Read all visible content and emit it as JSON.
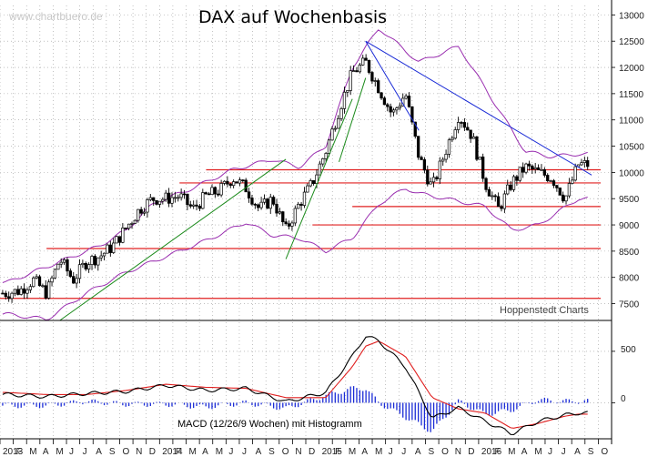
{
  "header": {
    "title": "DAX auf Wochenbasis",
    "watermark": "www.chartbuero.de",
    "source_note": "Hoppenstedt Charts"
  },
  "macd_panel": {
    "label": "MACD (12/26/9 Wochen) mit Histogramm",
    "ticks": [
      "500",
      "0"
    ]
  },
  "colors": {
    "candle": "#000000",
    "bollinger": "#9a2fb0",
    "support_resistance": "#e02020",
    "downtrend": "#1a2bd6",
    "uptrend": "#1a8a1a",
    "macd_line": "#000000",
    "signal_line": "#e02020",
    "histogram": "#1a2bd6",
    "grid": "#9a9a9a"
  },
  "chart_data": [
    {
      "type": "candlestick",
      "title": "DAX auf Wochenbasis",
      "y_ticks": [
        13000,
        12500,
        12000,
        11500,
        11000,
        10500,
        10000,
        9500,
        9000,
        8500,
        8000,
        7500
      ],
      "ylim": [
        7180,
        13180
      ],
      "x_period": [
        "2013-01",
        "2016-09"
      ],
      "x_labels": [
        "2013",
        "F",
        "M",
        "A",
        "M",
        "J",
        "J",
        "A",
        "S",
        "O",
        "N",
        "D",
        "2014",
        "F",
        "M",
        "A",
        "M",
        "J",
        "J",
        "A",
        "S",
        "O",
        "N",
        "D",
        "2015",
        "F",
        "M",
        "A",
        "M",
        "J",
        "J",
        "A",
        "S",
        "O",
        "N",
        "D",
        "2016",
        "F",
        "M",
        "A",
        "M",
        "J",
        "J",
        "A",
        "S",
        "O"
      ],
      "grid": true,
      "close_path_anchors": [
        [
          "2013-01",
          7700
        ],
        [
          "2013-02",
          7750
        ],
        [
          "2013-03",
          7950
        ],
        [
          "2013-04",
          7700
        ],
        [
          "2013-05",
          8350
        ],
        [
          "2013-06",
          7950
        ],
        [
          "2013-07",
          8300
        ],
        [
          "2013-08",
          8400
        ],
        [
          "2013-09",
          8600
        ],
        [
          "2013-10",
          8950
        ],
        [
          "2013-11",
          9300
        ],
        [
          "2013-12",
          9500
        ],
        [
          "2014-01",
          9500
        ],
        [
          "2014-02",
          9550
        ],
        [
          "2014-03",
          9300
        ],
        [
          "2014-04",
          9550
        ],
        [
          "2014-05",
          9650
        ],
        [
          "2014-06",
          9900
        ],
        [
          "2014-07",
          9700
        ],
        [
          "2014-08",
          9300
        ],
        [
          "2014-09",
          9500
        ],
        [
          "2014-10",
          8900
        ],
        [
          "2014-11",
          9400
        ],
        [
          "2014-12",
          9800
        ],
        [
          "2015-01",
          10400
        ],
        [
          "2015-02",
          11200
        ],
        [
          "2015-03",
          11900
        ],
        [
          "2015-04",
          12100
        ],
        [
          "2015-05",
          11600
        ],
        [
          "2015-06",
          11100
        ],
        [
          "2015-07",
          11500
        ],
        [
          "2015-08",
          10300
        ],
        [
          "2015-09",
          9700
        ],
        [
          "2015-10",
          10400
        ],
        [
          "2015-11",
          11100
        ],
        [
          "2015-12",
          10700
        ],
        [
          "2016-01",
          9800
        ],
        [
          "2016-02",
          9300
        ],
        [
          "2016-03",
          9800
        ],
        [
          "2016-04",
          10100
        ],
        [
          "2016-05",
          10000
        ],
        [
          "2016-06",
          9900
        ],
        [
          "2016-07",
          9500
        ],
        [
          "2016-08",
          10150
        ]
      ],
      "horizontal_lines": [
        10050,
        9800,
        9350,
        9000,
        8550,
        7600
      ],
      "downtrend_lines": [
        {
          "from": [
            "2015-04",
            12500
          ],
          "to": [
            "2016-09",
            9950
          ]
        },
        {
          "from": [
            "2015-04",
            12500
          ],
          "to": [
            "2015-08",
            10800
          ]
        }
      ],
      "uptrend_lines": [
        {
          "from": [
            "2013-05",
            7180
          ],
          "to": [
            "2014-10",
            10250
          ]
        },
        {
          "from": [
            "2014-10",
            8350
          ],
          "to": [
            "2015-03",
            11400
          ]
        },
        {
          "from": [
            "2015-02",
            10200
          ],
          "to": [
            "2015-04",
            11800
          ]
        }
      ],
      "bollinger_upper_anchors": [
        [
          "2013-01",
          7900
        ],
        [
          "2013-05",
          8300
        ],
        [
          "2013-08",
          8600
        ],
        [
          "2013-10",
          8900
        ],
        [
          "2013-12",
          9400
        ],
        [
          "2014-03",
          9700
        ],
        [
          "2014-06",
          10050
        ],
        [
          "2014-09",
          10250
        ],
        [
          "2014-11",
          10100
        ],
        [
          "2015-01",
          10500
        ],
        [
          "2015-03",
          12000
        ],
        [
          "2015-05",
          12750
        ],
        [
          "2015-08",
          12100
        ],
        [
          "2015-11",
          12400
        ],
        [
          "2016-02",
          11200
        ],
        [
          "2016-04",
          10400
        ],
        [
          "2016-06",
          10300
        ],
        [
          "2016-08",
          10350
        ]
      ],
      "bollinger_lower_anchors": [
        [
          "2013-01",
          7300
        ],
        [
          "2013-04",
          7200
        ],
        [
          "2013-07",
          7700
        ],
        [
          "2013-10",
          8100
        ],
        [
          "2014-01",
          8400
        ],
        [
          "2014-04",
          8700
        ],
        [
          "2014-07",
          9050
        ],
        [
          "2014-09",
          8800
        ],
        [
          "2014-11",
          8750
        ],
        [
          "2015-01",
          8500
        ],
        [
          "2015-03",
          8750
        ],
        [
          "2015-05",
          9400
        ],
        [
          "2015-07",
          9700
        ],
        [
          "2015-08",
          9600
        ],
        [
          "2015-10",
          9500
        ],
        [
          "2016-01",
          9350
        ],
        [
          "2016-03",
          8900
        ],
        [
          "2016-05",
          9000
        ],
        [
          "2016-08",
          9500
        ]
      ]
    },
    {
      "type": "line",
      "title": "MACD (12/26/9 Wochen) mit Histogramm",
      "y_ticks": [
        500,
        0
      ],
      "ylim": [
        -350,
        800
      ],
      "series": [
        {
          "values_anchors": [
            [
              "2013-01",
              80
            ],
            [
              "2013-04",
              60
            ],
            [
              "2013-07",
              90
            ],
            [
              "2013-10",
              110
            ],
            [
              "2014-01",
              170
            ],
            [
              "2014-04",
              120
            ],
            [
              "2014-07",
              140
            ],
            [
              "2014-10",
              10
            ],
            [
              "2015-01",
              100
            ],
            [
              "2015-03",
              450
            ],
            [
              "2015-04",
              650
            ],
            [
              "2015-05",
              600
            ],
            [
              "2015-07",
              350
            ],
            [
              "2015-09",
              -150
            ],
            [
              "2015-11",
              -50
            ],
            [
              "2016-01",
              -180
            ],
            [
              "2016-03",
              -300
            ],
            [
              "2016-05",
              -180
            ],
            [
              "2016-07",
              -120
            ],
            [
              "2016-08",
              -100
            ]
          ]
        },
        {
          "values_anchors": [
            [
              "2013-01",
              100
            ],
            [
              "2013-04",
              80
            ],
            [
              "2013-07",
              80
            ],
            [
              "2013-10",
              120
            ],
            [
              "2014-01",
              180
            ],
            [
              "2014-04",
              150
            ],
            [
              "2014-07",
              140
            ],
            [
              "2014-10",
              50
            ],
            [
              "2015-01",
              50
            ],
            [
              "2015-03",
              350
            ],
            [
              "2015-04",
              550
            ],
            [
              "2015-05",
              600
            ],
            [
              "2015-07",
              450
            ],
            [
              "2015-09",
              50
            ],
            [
              "2015-11",
              -60
            ],
            [
              "2016-01",
              -100
            ],
            [
              "2016-03",
              -250
            ],
            [
              "2016-05",
              -200
            ],
            [
              "2016-07",
              -130
            ],
            [
              "2016-08",
              -110
            ]
          ]
        }
      ]
    }
  ]
}
